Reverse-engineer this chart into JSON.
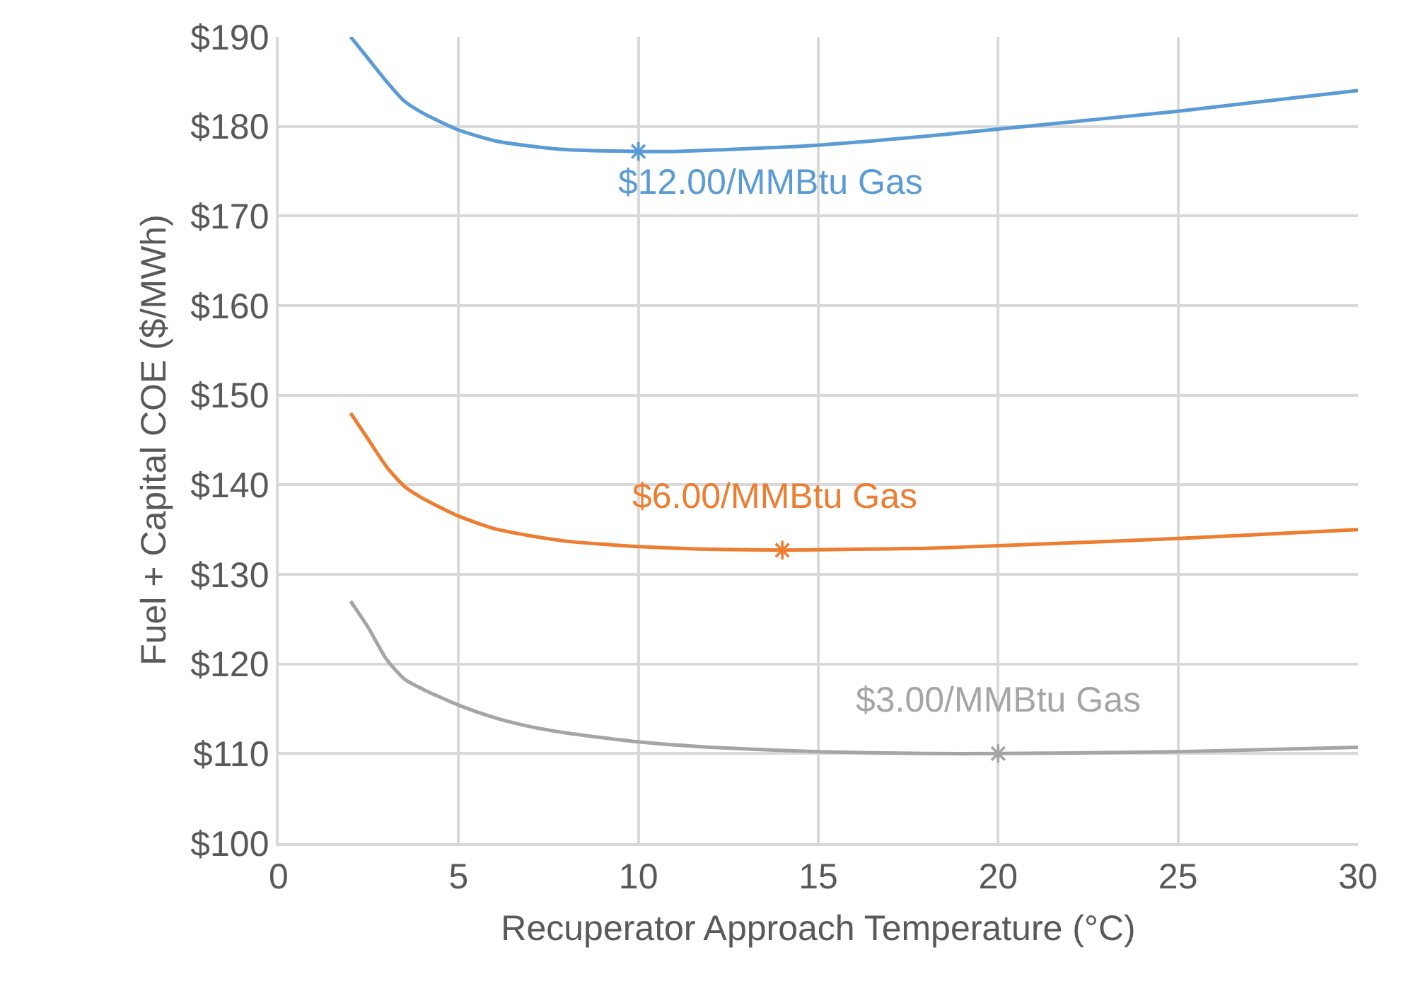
{
  "chart_data": {
    "type": "line",
    "xlabel": "Recuperator Approach Temperature (°C)",
    "ylabel": "Fuel + Capital COE ($/MWh)",
    "xlim": [
      0,
      30
    ],
    "xticks": [
      0,
      5,
      10,
      15,
      20,
      25,
      30
    ],
    "ylim": [
      100,
      190
    ],
    "yticks": [
      {
        "value": 100,
        "label": "$100"
      },
      {
        "value": 110,
        "label": "$110"
      },
      {
        "value": 120,
        "label": "$120"
      },
      {
        "value": 130,
        "label": "$130"
      },
      {
        "value": 140,
        "label": "$140"
      },
      {
        "value": 150,
        "label": "$150"
      },
      {
        "value": 160,
        "label": "$160"
      },
      {
        "value": 170,
        "label": "$170"
      },
      {
        "value": 180,
        "label": "$180"
      },
      {
        "value": 190,
        "label": "$190"
      }
    ],
    "grid": true,
    "legend": false,
    "marker": "none",
    "line_style": "solid",
    "series": [
      {
        "name": "$12.00/MMBtu Gas",
        "color": "#5b9bd5",
        "x": [
          2,
          2.5,
          3,
          3.5,
          4,
          5,
          6,
          7,
          8,
          10,
          11,
          13,
          15,
          18,
          20,
          25,
          30
        ],
        "values": [
          190,
          187.5,
          185,
          182.8,
          181.5,
          179.6,
          178.4,
          177.8,
          177.4,
          177.2,
          177.2,
          177.5,
          177.9,
          178.9,
          179.7,
          181.7,
          184
        ]
      },
      {
        "name": "$6.00/MMBtu Gas",
        "color": "#ed7d31",
        "x": [
          2,
          2.5,
          3,
          3.5,
          4,
          5,
          6,
          7,
          8,
          10,
          12,
          14,
          16,
          18,
          20,
          25,
          30
        ],
        "values": [
          148,
          145,
          142,
          139.8,
          138.5,
          136.5,
          135.1,
          134.3,
          133.7,
          133.1,
          132.8,
          132.7,
          132.8,
          132.9,
          133.2,
          134,
          135
        ]
      },
      {
        "name": "$3.00/MMBtu Gas",
        "color": "#a5a5a5",
        "x": [
          2,
          2.5,
          3,
          3.5,
          4,
          5,
          6,
          7,
          8,
          10,
          12,
          15,
          18,
          20,
          25,
          30
        ],
        "values": [
          127,
          124,
          120.5,
          118.3,
          117.2,
          115.4,
          114,
          113,
          112.3,
          111.3,
          110.7,
          110.2,
          110,
          110,
          110.2,
          110.7
        ]
      },
      {
        "type": "scatter",
        "marker": "cross",
        "color": "#5b9bd5",
        "x": [
          10
        ],
        "values": [
          177.2
        ]
      },
      {
        "type": "scatter",
        "marker": "cross",
        "color": "#ed7d31",
        "x": [
          14
        ],
        "values": [
          132.7
        ]
      },
      {
        "type": "scatter",
        "marker": "cross",
        "color": "#a5a5a5",
        "x": [
          20
        ],
        "values": [
          110
        ]
      }
    ]
  }
}
